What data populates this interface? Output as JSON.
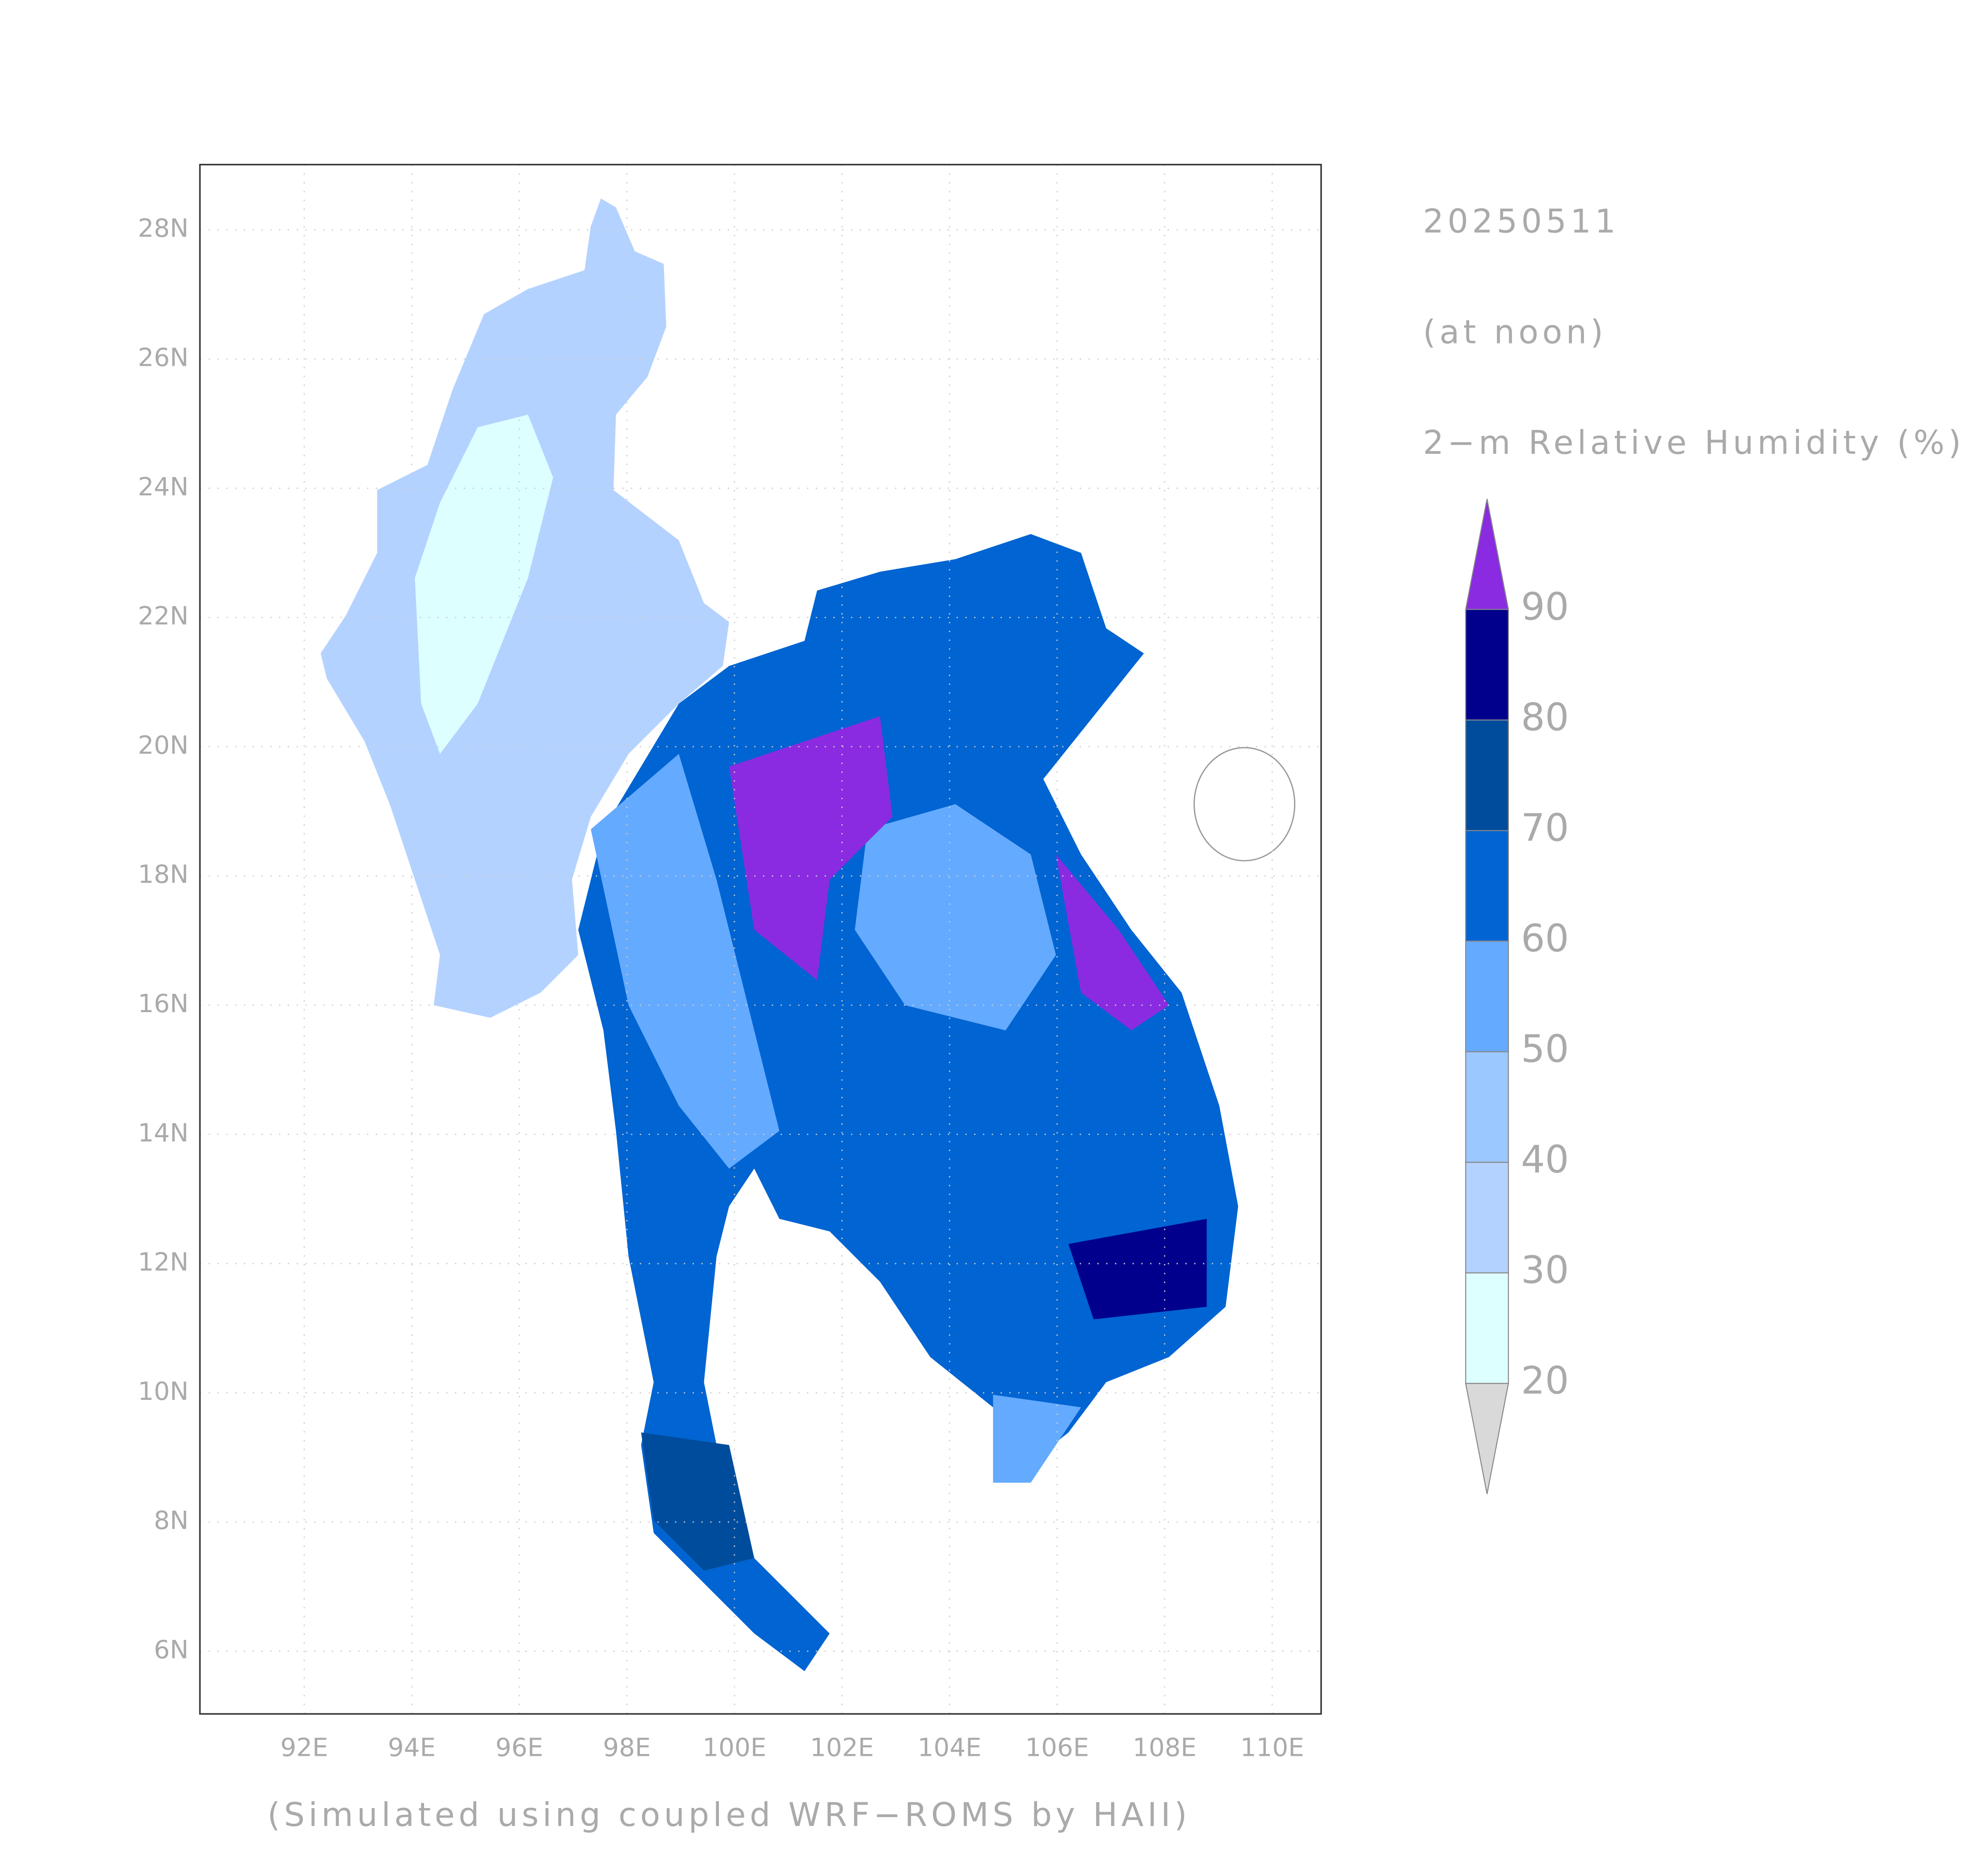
{
  "title": "20250511",
  "subtitle": "(at noon)",
  "variable": "2−m Relative Humidity (%)",
  "note": "(Simulated using coupled WRF−ROMS by HAII)",
  "map": {
    "xlim": [
      90.06,
      110.91
    ],
    "ylim": [
      5.03,
      29.01
    ],
    "xticks": [
      {
        "value": 92,
        "label": "92E"
      },
      {
        "value": 94,
        "label": "94E"
      },
      {
        "value": 96,
        "label": "96E"
      },
      {
        "value": 98,
        "label": "98E"
      },
      {
        "value": 100,
        "label": "100E"
      },
      {
        "value": 102,
        "label": "102E"
      },
      {
        "value": 104,
        "label": "104E"
      },
      {
        "value": 106,
        "label": "106E"
      },
      {
        "value": 108,
        "label": "108E"
      },
      {
        "value": 110,
        "label": "110E"
      }
    ],
    "yticks": [
      {
        "value": 6,
        "label": "6N"
      },
      {
        "value": 8,
        "label": "8N"
      },
      {
        "value": 10,
        "label": "10N"
      },
      {
        "value": 12,
        "label": "12N"
      },
      {
        "value": 14,
        "label": "14N"
      },
      {
        "value": 16,
        "label": "16N"
      },
      {
        "value": 18,
        "label": "18N"
      },
      {
        "value": 20,
        "label": "20N"
      },
      {
        "value": 22,
        "label": "22N"
      },
      {
        "value": 24,
        "label": "24N"
      },
      {
        "value": 26,
        "label": "26N"
      },
      {
        "value": 28,
        "label": "28N"
      }
    ]
  },
  "colorbar": {
    "levels": [
      20,
      30,
      40,
      50,
      60,
      70,
      80,
      90
    ],
    "under_color": "#d9d9d9",
    "colors": [
      "#ddffff",
      "#b4d2ff",
      "#9bc8ff",
      "#64aaff",
      "#0064d2",
      "#004c9c",
      "#00008c"
    ],
    "over_color": "#8a2be2"
  }
}
